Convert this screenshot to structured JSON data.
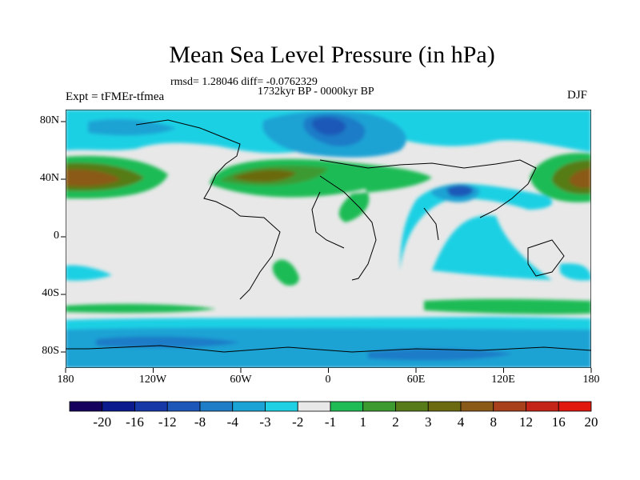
{
  "title": "Mean Sea Level Pressure (in hPa)",
  "stats": "rmsd= 1.28046 diff= -0.0762329",
  "period": "1732kyr BP - 0000kyr BP",
  "experiment": "Expt = tFMEr-tfmea",
  "season": "DJF",
  "lat_labels": [
    "80N",
    "40N",
    "0",
    "40S",
    "80S"
  ],
  "lon_labels": [
    "180",
    "120W",
    "60W",
    "0",
    "60E",
    "120E",
    "180"
  ],
  "colorbar": {
    "labels": [
      "-20",
      "-16",
      "-12",
      "-8",
      "-4",
      "-3",
      "-2",
      "-1",
      "1",
      "2",
      "3",
      "4",
      "8",
      "12",
      "16",
      "20"
    ],
    "colors": [
      "#16005e",
      "#0b1a8c",
      "#1538a6",
      "#1d58b8",
      "#1f7cc7",
      "#1aa3d4",
      "#1fd0e4",
      "#e8e8e8",
      "#1fbb55",
      "#3c9a30",
      "#567b18",
      "#6b6a10",
      "#8a5a18",
      "#a8401c",
      "#c42418",
      "#e0180e"
    ]
  }
}
